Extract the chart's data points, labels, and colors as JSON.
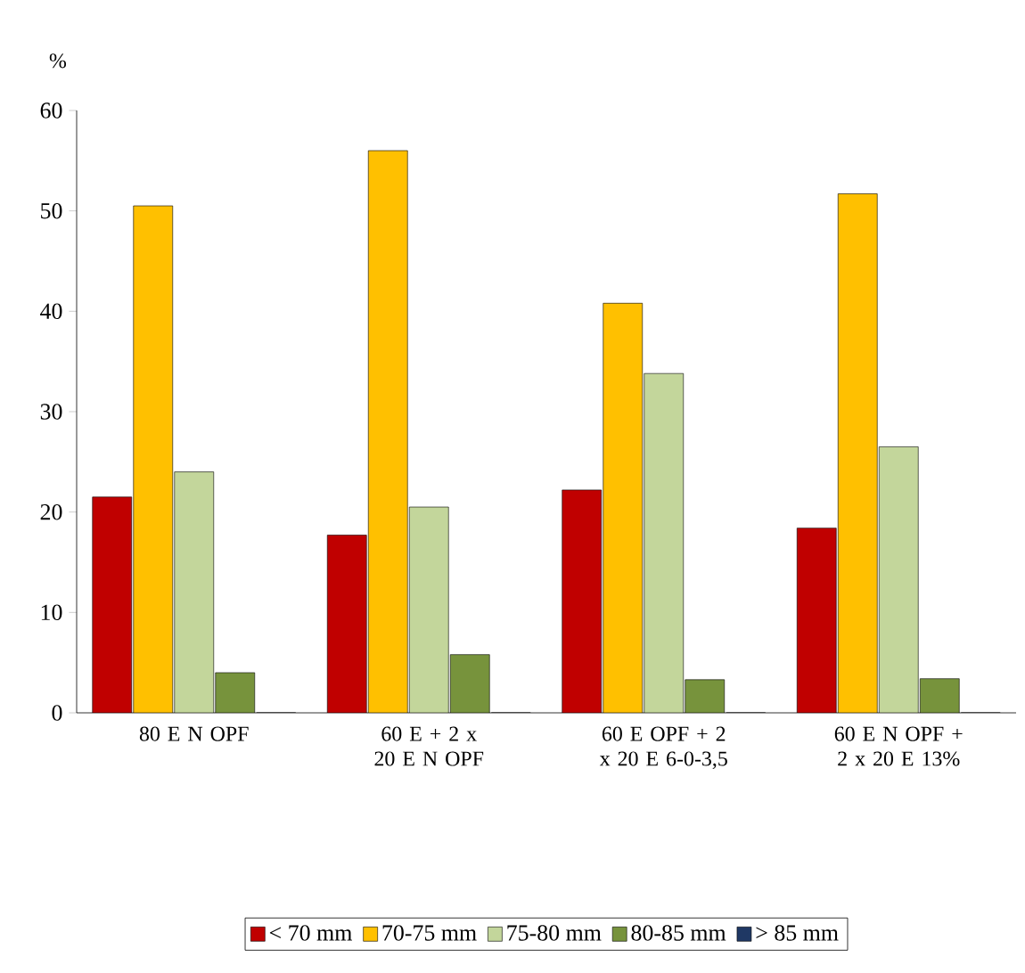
{
  "chart_data": {
    "type": "bar",
    "ylabel": "%",
    "categories": [
      "80 E N OPF",
      "60 E + 2 x 20 E N OPF",
      "60 E OPF + 2 x 20 E 6-0-3,5",
      "60 E N OPF + 2 x 20 E 13%"
    ],
    "series": [
      {
        "name": "< 70 mm",
        "color": "#c00000",
        "values": [
          21.5,
          17.7,
          22.2,
          18.4
        ]
      },
      {
        "name": "70-75 mm",
        "color": "#ffc000",
        "values": [
          50.5,
          56,
          40.8,
          51.7
        ]
      },
      {
        "name": "75-80 mm",
        "color": "#c3d69b",
        "values": [
          24,
          20.5,
          33.8,
          26.5
        ]
      },
      {
        "name": "80-85 mm",
        "color": "#77933c",
        "values": [
          4,
          5.8,
          3.3,
          3.4
        ]
      },
      {
        "name": "> 85 mm",
        "color": "#1f3864",
        "values": [
          0,
          0,
          0,
          0
        ]
      }
    ],
    "ylim": [
      0,
      60
    ],
    "yticks": [
      0,
      10,
      20,
      30,
      40,
      50,
      60
    ],
    "legend": "bottom",
    "grid": false
  }
}
